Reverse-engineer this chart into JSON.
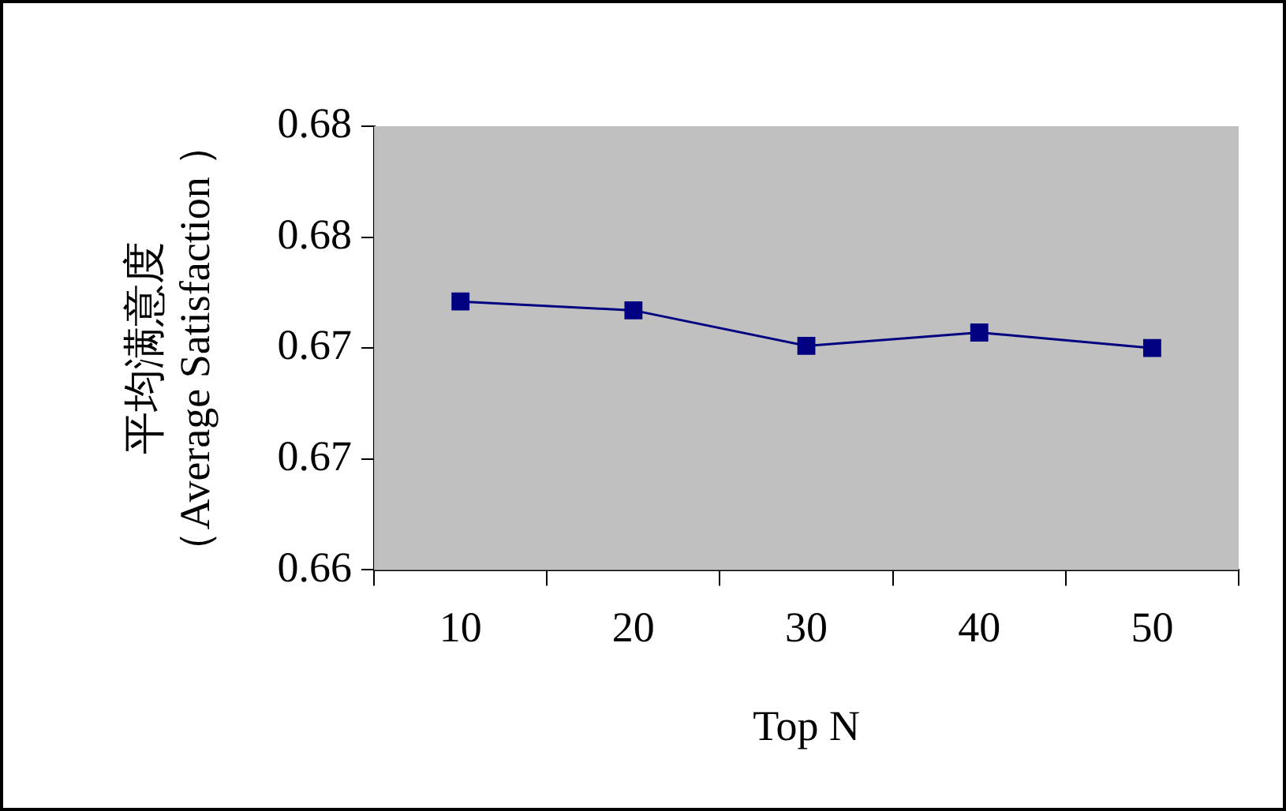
{
  "chart_data": {
    "type": "line",
    "xlabel": "Top N",
    "ylabel": "平均满意度（Average Satisfaction ）",
    "categories": [
      "10",
      "20",
      "30",
      "40",
      "50"
    ],
    "series": [
      {
        "color": "#000080",
        "values": [
          0.6721,
          0.6717,
          0.6701,
          0.6707,
          0.67
        ]
      }
    ],
    "ylim": [
      0.66,
      0.68
    ],
    "yticks": [
      {
        "value": 0.66,
        "label": "0.66"
      },
      {
        "value": 0.665,
        "label": "0.67"
      },
      {
        "value": 0.67,
        "label": "0.67"
      },
      {
        "value": 0.675,
        "label": "0.68"
      },
      {
        "value": 0.68,
        "label": "0.68"
      }
    ],
    "grid": false,
    "legend": false,
    "marker": "square",
    "line_style": "solid"
  }
}
